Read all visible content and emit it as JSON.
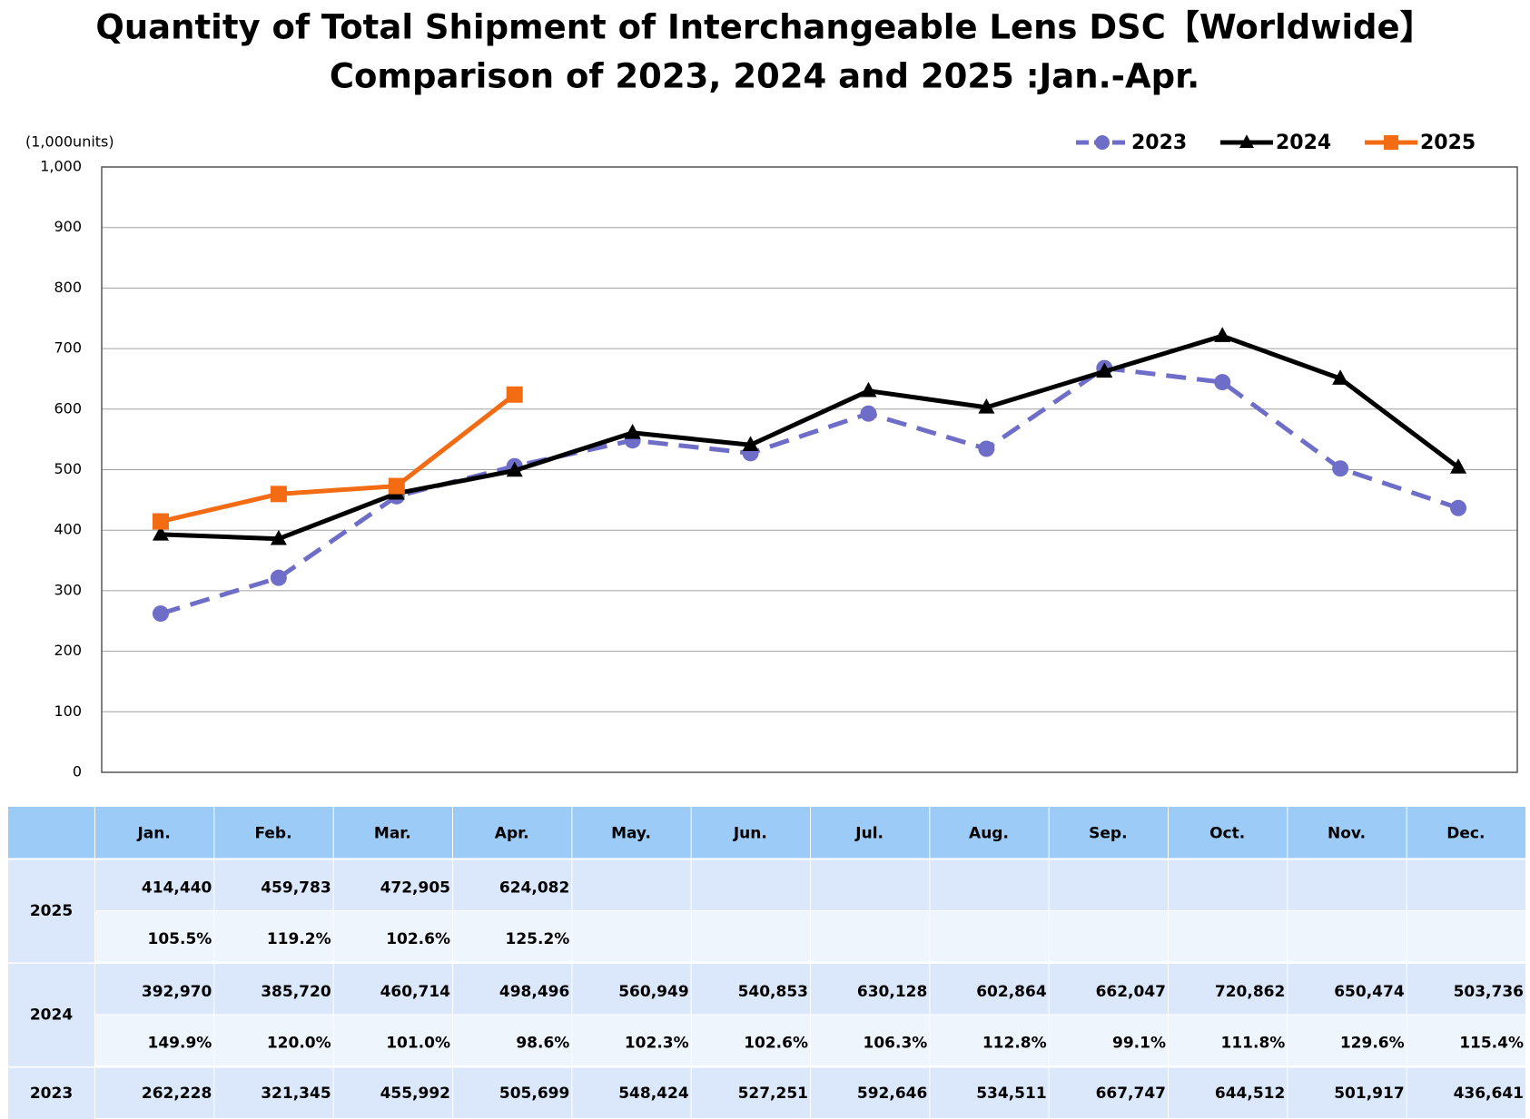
{
  "chart_data": {
    "type": "line",
    "title": "Quantity of Total Shipment of Interchangeable Lens DSC【Worldwide】",
    "subtitle": "Comparison of 2023, 2024 and 2025 :Jan.-Apr.",
    "y_label": "(1,000units)",
    "categories": [
      "Jan.",
      "Feb.",
      "Mar.",
      "Apr.",
      "May.",
      "Jun.",
      "Jul.",
      "Aug.",
      "Sep.",
      "Oct.",
      "Nov.",
      "Dec."
    ],
    "series": [
      {
        "name": "2023",
        "color": "#6e6ec8",
        "style": "dashed",
        "marker": "circle",
        "values": [
          262.228,
          321.345,
          455.992,
          505.699,
          548.424,
          527.251,
          592.646,
          534.511,
          667.747,
          644.512,
          501.917,
          436.641
        ]
      },
      {
        "name": "2024",
        "color": "#000000",
        "style": "solid",
        "marker": "triangle",
        "values": [
          392.97,
          385.72,
          460.714,
          498.496,
          560.949,
          540.853,
          630.128,
          602.864,
          662.047,
          720.862,
          650.474,
          503.736
        ]
      },
      {
        "name": "2025",
        "color": "#f36b12",
        "style": "solid",
        "marker": "square",
        "values": [
          414.44,
          459.783,
          472.905,
          624.082,
          null,
          null,
          null,
          null,
          null,
          null,
          null,
          null
        ]
      }
    ],
    "ylim": [
      0,
      1000
    ],
    "yticks": [
      0,
      100,
      200,
      300,
      400,
      500,
      600,
      700,
      800,
      900,
      {
        "value": 1000,
        "label": "1,000"
      }
    ],
    "grid": true,
    "legend": "top-right"
  },
  "table": {
    "rows": [
      {
        "label": "2025",
        "values": [
          "414,440",
          "459,783",
          "472,905",
          "624,082"
        ],
        "ratios": [
          "105.5%",
          "119.2%",
          "102.6%",
          "125.2%"
        ]
      },
      {
        "label": "2024",
        "values": [
          "392,970",
          "385,720",
          "460,714",
          "498,496",
          "560,949",
          "540,853",
          "630,128",
          "602,864",
          "662,047",
          "720,862",
          "650,474",
          "503,736"
        ],
        "ratios": [
          "149.9%",
          "120.0%",
          "101.0%",
          "98.6%",
          "102.3%",
          "102.6%",
          "106.3%",
          "112.8%",
          "99.1%",
          "111.8%",
          "129.6%",
          "115.4%"
        ]
      },
      {
        "label": "2023",
        "values": [
          "262,228",
          "321,345",
          "455,992",
          "505,699",
          "548,424",
          "527,251",
          "592,646",
          "534,511",
          "667,747",
          "644,512",
          "501,917",
          "436,641"
        ]
      }
    ]
  }
}
